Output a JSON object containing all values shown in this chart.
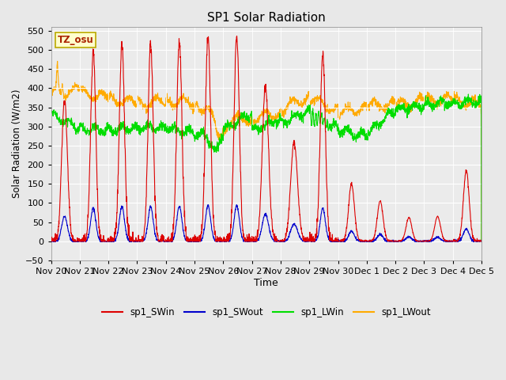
{
  "title": "SP1 Solar Radiation",
  "xlabel": "Time",
  "ylabel": "Solar Radiation (W/m2)",
  "ylim": [
    -50,
    560
  ],
  "fig_bg_color": "#e8e8e8",
  "plot_bg_color": "#ebebeb",
  "grid_color": "#ffffff",
  "tz_label": "TZ_osu",
  "series_colors": {
    "sp1_SWin": "#dd0000",
    "sp1_SWout": "#0000cc",
    "sp1_LWin": "#00dd00",
    "sp1_LWout": "#ffaa00"
  },
  "legend_labels": [
    "sp1_SWin",
    "sp1_SWout",
    "sp1_LWin",
    "sp1_LWout"
  ],
  "tick_labels": [
    "Nov 20",
    "Nov 21",
    "Nov 22",
    "Nov 23",
    "Nov 24",
    "Nov 25",
    "Nov 26",
    "Nov 27",
    "Nov 28",
    "Nov 29",
    "Nov 30",
    "Dec 1",
    "Dec 2",
    "Dec 3",
    "Dec 4",
    "Dec 5"
  ],
  "n_days": 15,
  "pts_per_day": 144
}
